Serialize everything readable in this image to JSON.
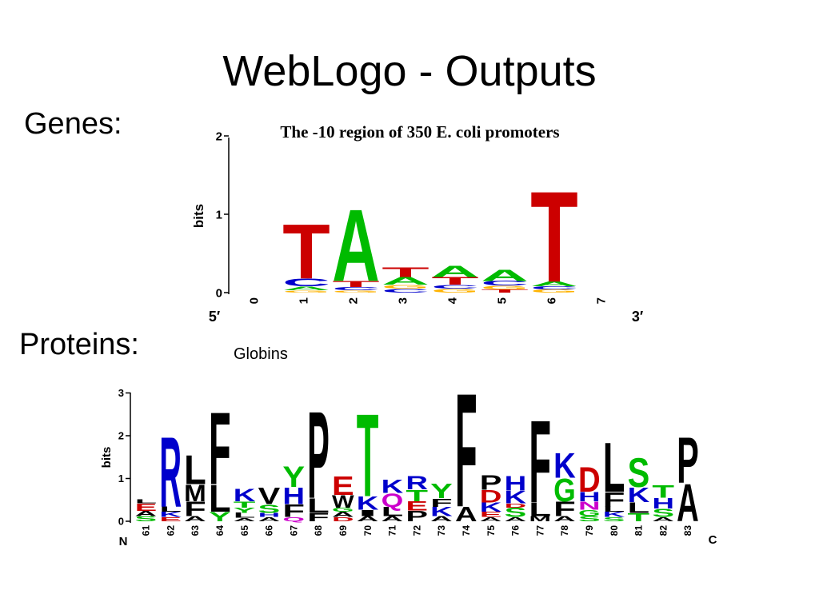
{
  "slide": {
    "title": "WebLogo - Outputs",
    "genes_label": "Genes:",
    "proteins_label": "Proteins:"
  },
  "dna_logo": {
    "title": "The -10 region of 350 E. coli promoters",
    "y_axis_label": "bits",
    "y_ticks": [
      "0",
      "1",
      "2"
    ],
    "x_ticks": [
      "0",
      "1",
      "2",
      "3",
      "4",
      "5",
      "6",
      "7"
    ],
    "end_left": "5′",
    "end_right": "3′",
    "colors": {
      "T": "#cc0000",
      "A": "#00bb00",
      "C": "#0000cc",
      "G": "#ffb300"
    },
    "positions": [
      {
        "pos": "1",
        "stack": [
          {
            "l": "G",
            "h": 0.03
          },
          {
            "l": "A",
            "h": 0.05
          },
          {
            "l": "C",
            "h": 0.1
          },
          {
            "l": "T",
            "h": 0.72
          }
        ]
      },
      {
        "pos": "2",
        "stack": [
          {
            "l": "G",
            "h": 0.03
          },
          {
            "l": "C",
            "h": 0.04
          },
          {
            "l": "T",
            "h": 0.08
          },
          {
            "l": "A",
            "h": 0.95
          }
        ]
      },
      {
        "pos": "3",
        "stack": [
          {
            "l": "C",
            "h": 0.05
          },
          {
            "l": "G",
            "h": 0.05
          },
          {
            "l": "A",
            "h": 0.1
          },
          {
            "l": "T",
            "h": 0.13
          }
        ]
      },
      {
        "pos": "4",
        "stack": [
          {
            "l": "G",
            "h": 0.05
          },
          {
            "l": "C",
            "h": 0.05
          },
          {
            "l": "T",
            "h": 0.1
          },
          {
            "l": "A",
            "h": 0.15
          }
        ]
      },
      {
        "pos": "5",
        "stack": [
          {
            "l": "T",
            "h": 0.04
          },
          {
            "l": "G",
            "h": 0.05
          },
          {
            "l": "C",
            "h": 0.06
          },
          {
            "l": "A",
            "h": 0.15
          }
        ]
      },
      {
        "pos": "6",
        "stack": [
          {
            "l": "G",
            "h": 0.04
          },
          {
            "l": "C",
            "h": 0.04
          },
          {
            "l": "A",
            "h": 0.06
          },
          {
            "l": "T",
            "h": 1.2
          }
        ]
      }
    ]
  },
  "protein_logo": {
    "title": "Globins",
    "y_axis_label": "bits",
    "y_ticks": [
      "0",
      "1",
      "2",
      "3"
    ],
    "x_ticks": [
      "61",
      "62",
      "63",
      "64",
      "65",
      "66",
      "67",
      "68",
      "69",
      "70",
      "71",
      "72",
      "73",
      "74",
      "75",
      "76",
      "77",
      "78",
      "79",
      "80",
      "81",
      "82",
      "83"
    ],
    "end_left": "N",
    "end_right": "C",
    "colors": {
      "A": "#000000",
      "C": "#00bb00",
      "D": "#cc0000",
      "E": "#cc0000",
      "F": "#000000",
      "G": "#00bb00",
      "H": "#0000cc",
      "I": "#000000",
      "K": "#0000cc",
      "L": "#000000",
      "M": "#000000",
      "N": "#cc00cc",
      "P": "#000000",
      "Q": "#cc00cc",
      "R": "#0000cc",
      "S": "#00bb00",
      "T": "#00bb00",
      "V": "#000000",
      "W": "#000000",
      "Y": "#00bb00"
    },
    "positions": [
      {
        "pos": "61",
        "stack": [
          {
            "l": "S",
            "h": 0.12
          },
          {
            "l": "A",
            "h": 0.12
          },
          {
            "l": "E",
            "h": 0.18
          },
          {
            "l": "L",
            "h": 0.1
          }
        ]
      },
      {
        "pos": "62",
        "stack": [
          {
            "l": "E",
            "h": 0.1
          },
          {
            "l": "K",
            "h": 0.12
          },
          {
            "l": "L",
            "h": 0.12
          },
          {
            "l": "R",
            "h": 1.7
          }
        ]
      },
      {
        "pos": "63",
        "stack": [
          {
            "l": "A",
            "h": 0.12
          },
          {
            "l": "F",
            "h": 0.35
          },
          {
            "l": "M",
            "h": 0.4
          },
          {
            "l": "L",
            "h": 0.7
          }
        ]
      },
      {
        "pos": "64",
        "stack": [
          {
            "l": "Y",
            "h": 0.22
          },
          {
            "l": "L",
            "h": 0.65
          },
          {
            "l": "F",
            "h": 1.75
          }
        ]
      },
      {
        "pos": "65",
        "stack": [
          {
            "l": "A",
            "h": 0.08
          },
          {
            "l": "L",
            "h": 0.12
          },
          {
            "l": "Y",
            "h": 0.12
          },
          {
            "l": "T",
            "h": 0.15
          },
          {
            "l": "K",
            "h": 0.3
          }
        ]
      },
      {
        "pos": "66",
        "stack": [
          {
            "l": "A",
            "h": 0.1
          },
          {
            "l": "H",
            "h": 0.1
          },
          {
            "l": "S",
            "h": 0.2
          },
          {
            "l": "V",
            "h": 0.4
          }
        ]
      },
      {
        "pos": "67",
        "stack": [
          {
            "l": "Q",
            "h": 0.1
          },
          {
            "l": "F",
            "h": 0.3
          },
          {
            "l": "H",
            "h": 0.4
          },
          {
            "l": "Y",
            "h": 0.5
          }
        ]
      },
      {
        "pos": "68",
        "stack": [
          {
            "l": "F",
            "h": 0.2
          },
          {
            "l": "L",
            "h": 0.35
          },
          {
            "l": "P",
            "h": 2.1
          }
        ]
      },
      {
        "pos": "69",
        "stack": [
          {
            "l": "D",
            "h": 0.1
          },
          {
            "l": "A",
            "h": 0.12
          },
          {
            "l": "G",
            "h": 0.1
          },
          {
            "l": "W",
            "h": 0.3
          },
          {
            "l": "E",
            "h": 0.45
          }
        ]
      },
      {
        "pos": "70",
        "stack": [
          {
            "l": "A",
            "h": 0.12
          },
          {
            "l": "I",
            "h": 0.15
          },
          {
            "l": "K",
            "h": 0.32
          },
          {
            "l": "T",
            "h": 2.0
          }
        ]
      },
      {
        "pos": "71",
        "stack": [
          {
            "l": "A",
            "h": 0.12
          },
          {
            "l": "L",
            "h": 0.22
          },
          {
            "l": "Q",
            "h": 0.32
          },
          {
            "l": "K",
            "h": 0.32
          }
        ]
      },
      {
        "pos": "72",
        "stack": [
          {
            "l": "P",
            "h": 0.25
          },
          {
            "l": "E",
            "h": 0.22
          },
          {
            "l": "T",
            "h": 0.28
          },
          {
            "l": "R",
            "h": 0.32
          }
        ]
      },
      {
        "pos": "73",
        "stack": [
          {
            "l": "A",
            "h": 0.12
          },
          {
            "l": "K",
            "h": 0.22
          },
          {
            "l": "F",
            "h": 0.2
          },
          {
            "l": "Y",
            "h": 0.35
          }
        ]
      },
      {
        "pos": "74",
        "stack": [
          {
            "l": "A",
            "h": 0.35
          },
          {
            "l": "F",
            "h": 2.75
          }
        ]
      },
      {
        "pos": "75",
        "stack": [
          {
            "l": "A",
            "h": 0.1
          },
          {
            "l": "E",
            "h": 0.12
          },
          {
            "l": "K",
            "h": 0.22
          },
          {
            "l": "D",
            "h": 0.3
          },
          {
            "l": "P",
            "h": 0.35
          }
        ]
      },
      {
        "pos": "76",
        "stack": [
          {
            "l": "A",
            "h": 0.1
          },
          {
            "l": "S",
            "h": 0.22
          },
          {
            "l": "D",
            "h": 0.1
          },
          {
            "l": "K",
            "h": 0.3
          },
          {
            "l": "H",
            "h": 0.35
          }
        ]
      },
      {
        "pos": "77",
        "stack": [
          {
            "l": "M",
            "h": 0.12
          },
          {
            "l": "L",
            "h": 0.32
          },
          {
            "l": "F",
            "h": 2.0
          }
        ]
      },
      {
        "pos": "78",
        "stack": [
          {
            "l": "A",
            "h": 0.12
          },
          {
            "l": "F",
            "h": 0.35
          },
          {
            "l": "G",
            "h": 0.55
          },
          {
            "l": "K",
            "h": 0.6
          }
        ]
      },
      {
        "pos": "79",
        "stack": [
          {
            "l": "S",
            "h": 0.12
          },
          {
            "l": "G",
            "h": 0.15
          },
          {
            "l": "N",
            "h": 0.2
          },
          {
            "l": "H",
            "h": 0.22
          },
          {
            "l": "D",
            "h": 0.6
          }
        ]
      },
      {
        "pos": "80",
        "stack": [
          {
            "l": "S",
            "h": 0.1
          },
          {
            "l": "K",
            "h": 0.12
          },
          {
            "l": "L",
            "h": 0.12
          },
          {
            "l": "F",
            "h": 0.35
          },
          {
            "l": "L",
            "h": 1.2
          }
        ]
      },
      {
        "pos": "81",
        "stack": [
          {
            "l": "T",
            "h": 0.2
          },
          {
            "l": "L",
            "h": 0.25
          },
          {
            "l": "K",
            "h": 0.35
          },
          {
            "l": "S",
            "h": 0.7
          }
        ]
      },
      {
        "pos": "82",
        "stack": [
          {
            "l": "A",
            "h": 0.1
          },
          {
            "l": "S",
            "h": 0.2
          },
          {
            "l": "H",
            "h": 0.25
          },
          {
            "l": "T",
            "h": 0.3
          }
        ]
      },
      {
        "pos": "83",
        "stack": [
          {
            "l": "A",
            "h": 0.9
          },
          {
            "l": "P",
            "h": 1.1
          }
        ]
      }
    ]
  }
}
